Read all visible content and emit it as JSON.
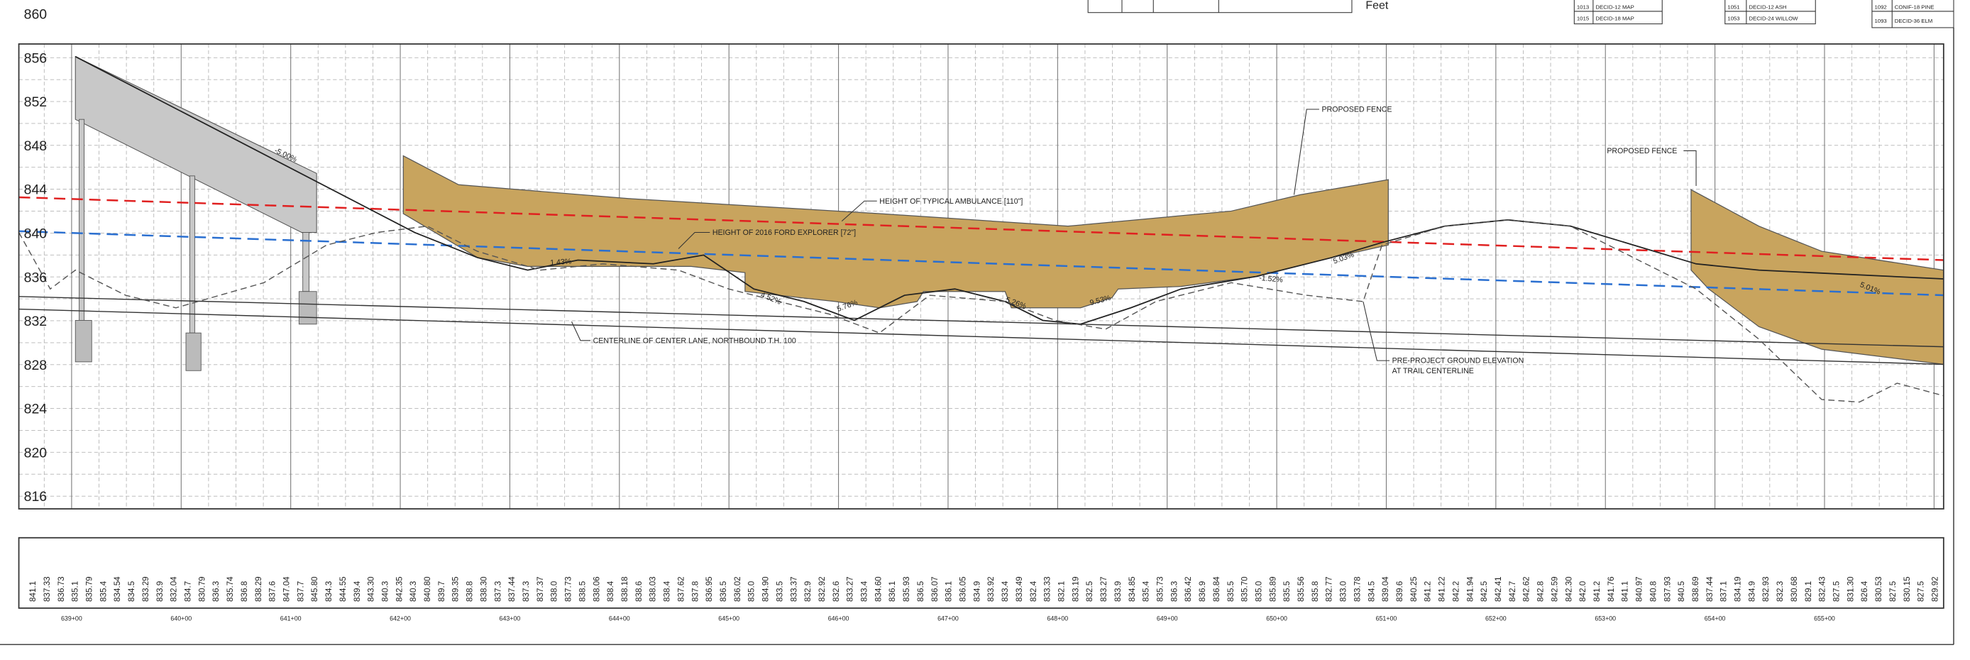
{
  "units": "Feet",
  "legend": [
    [
      "1013",
      "DECID-12 MAP"
    ],
    [
      "1015",
      "DECID-18 MAP"
    ],
    [
      "1051",
      "DECID-12 ASH"
    ],
    [
      "1053",
      "DECID-24 WILLOW"
    ],
    [
      "1092",
      "CONIF-18 PINE"
    ],
    [
      "1093",
      "DECID-36 ELM"
    ]
  ],
  "elevation_labels": [
    "860",
    "856",
    "852",
    "848",
    "844",
    "840",
    "836",
    "832",
    "828",
    "824",
    "820",
    "816"
  ],
  "annotations": {
    "ambulance": "HEIGHT OF TYPICAL AMBULANCE [110\"]",
    "explorer": "HEIGHT OF 2016 FORD EXPLORER [72\"]",
    "centerline": "CENTERLINE OF CENTER LANE, NORTHBOUND T.H. 100",
    "ground_1": "PRE-PROJECT GROUND ELEVATION",
    "ground_2": "AT TRAIL CENTERLINE",
    "fence_1": "PROPOSED FENCE",
    "fence_2": "PROPOSED FENCE"
  },
  "slopes": [
    "-5.00%",
    "1.43%",
    "4.52%",
    "5.76%",
    "5.26%",
    "9.53%",
    "-1.52%",
    "5.03%",
    "5.01%"
  ],
  "stations": [
    "639+00",
    "640+00",
    "641+00",
    "642+00",
    "643+00",
    "644+00",
    "645+00",
    "646+00",
    "647+00",
    "648+00",
    "649+00",
    "650+00",
    "651+00",
    "652+00",
    "653+00",
    "654+00",
    "655+00"
  ],
  "elevation_table": [
    "841.1",
    "837.33",
    "836.73",
    "835.1",
    "835.79",
    "835.4",
    "834.54",
    "834.5",
    "833.29",
    "833.9",
    "832.04",
    "834.7",
    "830.79",
    "836.3",
    "835.74",
    "836.8",
    "838.29",
    "837.6",
    "847.04",
    "837.7",
    "845.80",
    "834.3",
    "844.55",
    "839.4",
    "843.30",
    "840.3",
    "842.35",
    "840.3",
    "840.80",
    "839.7",
    "839.35",
    "838.8",
    "838.30",
    "837.3",
    "837.44",
    "837.3",
    "837.37",
    "838.0",
    "837.73",
    "838.5",
    "838.06",
    "838.4",
    "838.18",
    "838.6",
    "838.03",
    "838.4",
    "837.62",
    "837.8",
    "836.95",
    "836.5",
    "836.02",
    "835.0",
    "834.90",
    "833.5",
    "833.37",
    "832.9",
    "832.92",
    "832.6",
    "833.27",
    "833.4",
    "834.60",
    "836.1",
    "835.93",
    "836.5",
    "836.07",
    "836.1",
    "836.05",
    "834.9",
    "833.92",
    "833.4",
    "833.49",
    "832.4",
    "833.33",
    "832.1",
    "833.19",
    "832.5",
    "833.27",
    "833.9",
    "834.85",
    "835.4",
    "835.73",
    "836.3",
    "836.42",
    "836.9",
    "836.84",
    "835.5",
    "835.70",
    "835.0",
    "835.89",
    "835.5",
    "835.56",
    "835.8",
    "832.77",
    "833.0",
    "833.78",
    "834.5",
    "839.04",
    "839.6",
    "840.25",
    "841.2",
    "841.22",
    "842.2",
    "841.94",
    "842.5",
    "842.41",
    "842.7",
    "842.62",
    "842.8",
    "842.59",
    "842.30",
    "842.0",
    "841.2",
    "841.76",
    "841.1",
    "840.97",
    "840.8",
    "837.93",
    "840.5",
    "838.69",
    "837.44",
    "837.1",
    "834.19",
    "834.9",
    "832.93",
    "832.3",
    "830.68",
    "829.1",
    "832.43",
    "827.5",
    "831.30",
    "826.4",
    "830.53",
    "827.5",
    "830.15",
    "827.5",
    "829.92"
  ]
}
